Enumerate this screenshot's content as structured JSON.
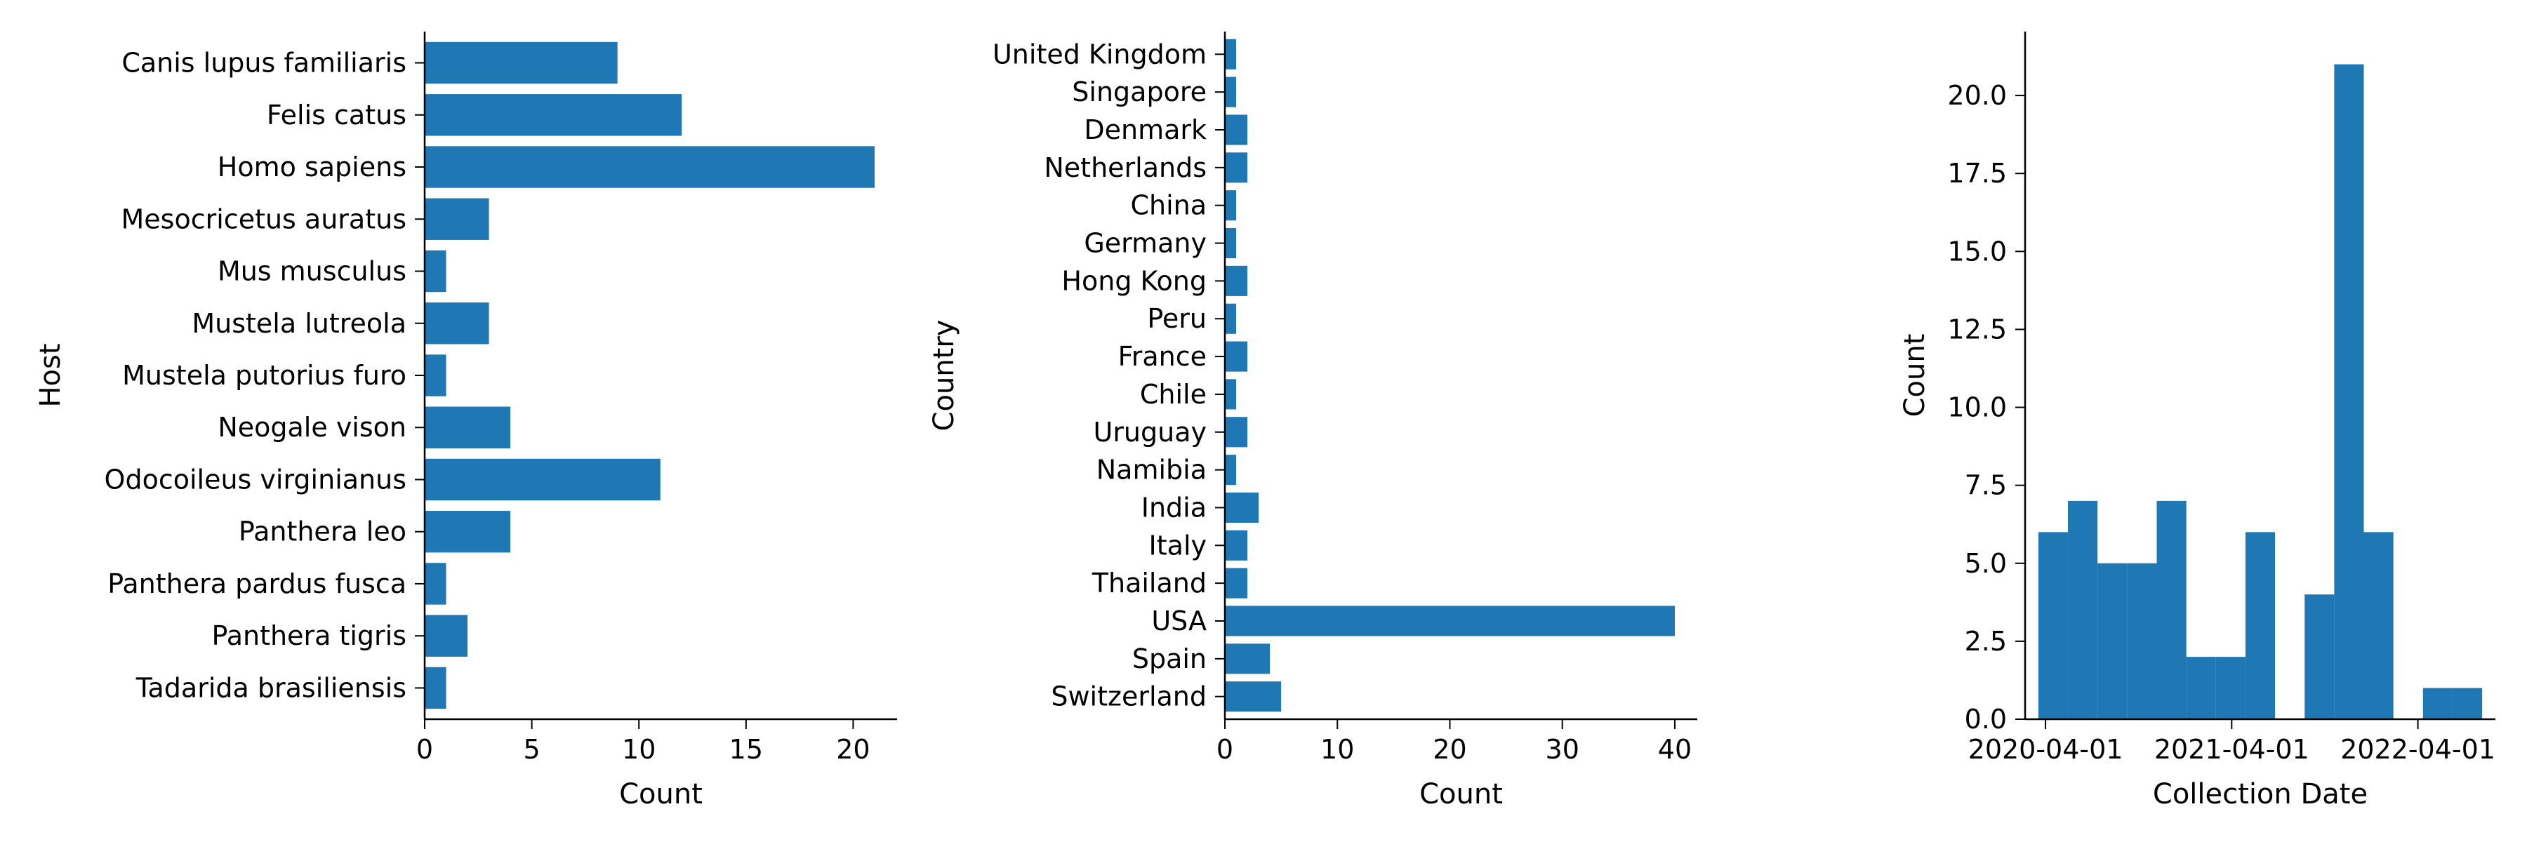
{
  "chart_data": [
    {
      "type": "bar",
      "orientation": "horizontal",
      "title": "",
      "xlabel": "Count",
      "ylabel": "Host",
      "categories": [
        "Canis lupus familiaris",
        "Felis catus",
        "Homo sapiens",
        "Mesocricetus auratus",
        "Mus musculus",
        "Mustela lutreola",
        "Mustela putorius furo",
        "Neogale vison",
        "Odocoileus virginianus",
        "Panthera leo",
        "Panthera pardus fusca",
        "Panthera tigris",
        "Tadarida brasiliensis"
      ],
      "values": [
        9,
        12,
        21,
        3,
        1,
        3,
        1,
        4,
        11,
        4,
        1,
        2,
        1
      ],
      "xlim": [
        0,
        22.05
      ],
      "xticks": [
        0,
        5,
        10,
        15,
        20
      ],
      "color": "#1f77b4",
      "grid": false,
      "legend": "none"
    },
    {
      "type": "bar",
      "orientation": "horizontal",
      "title": "",
      "xlabel": "Count",
      "ylabel": "Country",
      "categories": [
        "United Kingdom",
        "Singapore",
        "Denmark",
        "Netherlands",
        "China",
        "Germany",
        "Hong Kong",
        "Peru",
        "France",
        "Chile",
        "Uruguay",
        "Namibia",
        "India",
        "Italy",
        "Thailand",
        "USA",
        "Spain",
        "Switzerland"
      ],
      "values": [
        1,
        1,
        2,
        2,
        1,
        1,
        2,
        1,
        2,
        1,
        2,
        1,
        3,
        2,
        2,
        40,
        4,
        5
      ],
      "xlim": [
        0,
        42
      ],
      "xticks": [
        0,
        10,
        20,
        30,
        40
      ],
      "color": "#1f77b4",
      "grid": false,
      "legend": "none"
    },
    {
      "type": "bar",
      "subtype": "histogram",
      "title": "",
      "xlabel": "Collection Date",
      "ylabel": "Count",
      "bins": [
        {
          "start": "2020-03-18",
          "end": "2020-05-15",
          "count": 6
        },
        {
          "start": "2020-05-15",
          "end": "2020-07-12",
          "count": 7
        },
        {
          "start": "2020-07-12",
          "end": "2020-09-08",
          "count": 5
        },
        {
          "start": "2020-09-08",
          "end": "2020-11-05",
          "count": 5
        },
        {
          "start": "2020-11-05",
          "end": "2021-01-02",
          "count": 7
        },
        {
          "start": "2021-01-02",
          "end": "2021-03-01",
          "count": 2
        },
        {
          "start": "2021-03-01",
          "end": "2021-04-28",
          "count": 2
        },
        {
          "start": "2021-04-28",
          "end": "2021-06-25",
          "count": 6
        },
        {
          "start": "2021-06-25",
          "end": "2021-08-22",
          "count": 0
        },
        {
          "start": "2021-08-22",
          "end": "2021-10-19",
          "count": 4
        },
        {
          "start": "2021-10-19",
          "end": "2021-12-16",
          "count": 21
        },
        {
          "start": "2021-12-16",
          "end": "2022-02-12",
          "count": 6
        },
        {
          "start": "2022-02-12",
          "end": "2022-04-11",
          "count": 0
        },
        {
          "start": "2022-04-11",
          "end": "2022-06-08",
          "count": 1
        },
        {
          "start": "2022-06-08",
          "end": "2022-08-05",
          "count": 1
        }
      ],
      "xlim": [
        "2020-02-21",
        "2022-08-31"
      ],
      "xticks": [
        "2020-04-01",
        "2021-04-01",
        "2022-04-01"
      ],
      "ylim": [
        0,
        22.05
      ],
      "yticks": [
        0,
        2.5,
        5,
        7.5,
        10,
        12.5,
        15,
        17.5,
        20
      ],
      "ytick_labels": [
        "0.0",
        "2.5",
        "5.0",
        "7.5",
        "10.0",
        "12.5",
        "15.0",
        "17.5",
        "20.0"
      ],
      "color": "#1f77b4",
      "grid": false,
      "legend": "none"
    }
  ]
}
